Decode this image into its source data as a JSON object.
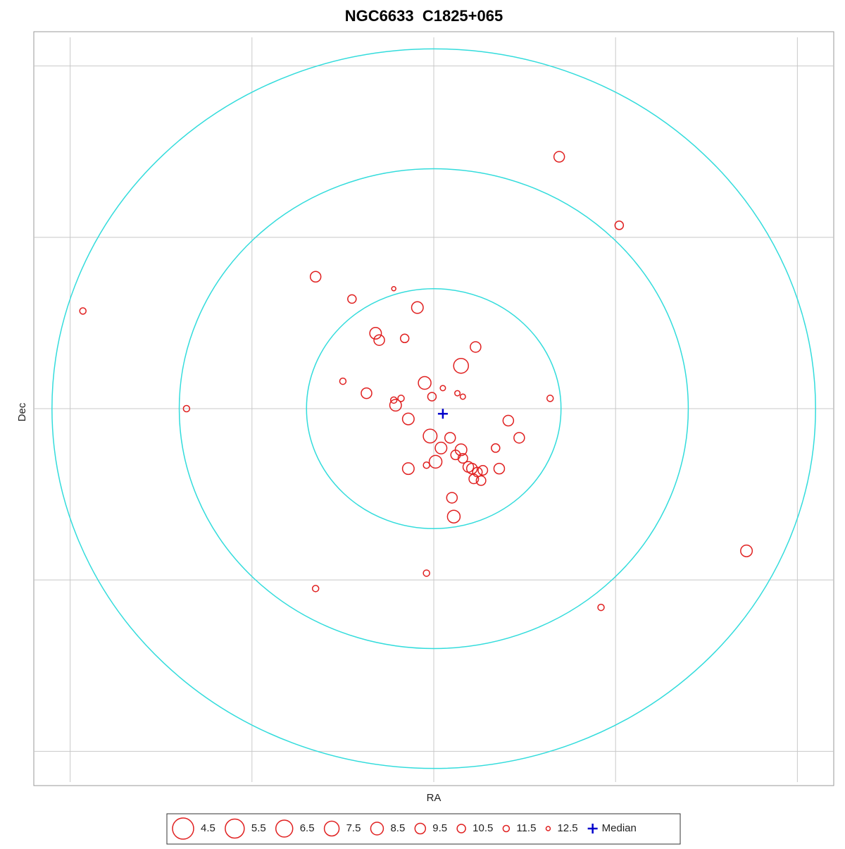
{
  "chart_data": {
    "type": "scatter",
    "title": "NGC6633  C1825+065",
    "x_label": "RA",
    "y_label": "Dec",
    "xlim": [
      -2.2,
      2.2
    ],
    "ylim": [
      -2.2,
      2.2
    ],
    "xgrid": [
      -2,
      -1,
      0,
      1,
      2
    ],
    "ygrid": [
      -2,
      -1,
      0,
      1,
      2
    ],
    "rings": [
      0.7,
      1.4,
      2.1
    ],
    "ring_color": "#33dcdc",
    "color": "#e02020",
    "x": [
      0.69,
      1.02,
      -0.65,
      -0.45,
      -0.22,
      -0.09,
      -1.93,
      -0.32,
      -0.3,
      -0.16,
      0.23,
      0.15,
      -0.5,
      -0.05,
      0.05,
      -0.37,
      -0.01,
      0.13,
      0.16,
      0.64,
      -0.22,
      -0.18,
      -0.21,
      -1.36,
      -0.14,
      0.41,
      -0.02,
      0.09,
      0.47,
      0.04,
      0.15,
      0.34,
      0.12,
      0.16,
      0.01,
      -0.04,
      -0.14,
      0.19,
      0.21,
      0.36,
      0.24,
      0.27,
      0.22,
      0.26,
      0.1,
      0.11,
      -0.04,
      -0.65,
      0.92,
      1.72
    ],
    "y": [
      1.47,
      1.07,
      0.77,
      0.64,
      0.7,
      0.59,
      0.57,
      0.44,
      0.4,
      0.41,
      0.36,
      0.25,
      0.16,
      0.15,
      0.12,
      0.09,
      0.07,
      0.09,
      0.07,
      0.06,
      0.05,
      0.06,
      0.02,
      0,
      -0.06,
      -0.07,
      -0.16,
      -0.17,
      -0.17,
      -0.23,
      -0.24,
      -0.23,
      -0.27,
      -0.29,
      -0.31,
      -0.33,
      -0.35,
      -0.34,
      -0.35,
      -0.35,
      -0.37,
      -0.36,
      -0.41,
      -0.42,
      -0.52,
      -0.63,
      -0.96,
      -1.05,
      -1.16,
      -0.83
    ],
    "magnitude": [
      9.5,
      10.5,
      9.5,
      10.5,
      12.5,
      9,
      11.5,
      9,
      9.5,
      10.5,
      9.5,
      7.5,
      11.5,
      8.5,
      12,
      9.5,
      10.5,
      12,
      12,
      11.5,
      11.5,
      11.5,
      9,
      11.5,
      9,
      9.5,
      8,
      9.5,
      9.5,
      9,
      9,
      10.5,
      10,
      10,
      8.5,
      11.5,
      9,
      9.5,
      9.5,
      9.5,
      10,
      10,
      10,
      10,
      9.5,
      8.5,
      11.5,
      11.5,
      11.5,
      9
    ],
    "legend_magnitudes": [
      4.5,
      5.5,
      6.5,
      7.5,
      8.5,
      9.5,
      10.5,
      11.5,
      12.5
    ],
    "median": {
      "name": "Median",
      "x": 0.05,
      "y": -0.03,
      "color": "#0000cc"
    }
  }
}
